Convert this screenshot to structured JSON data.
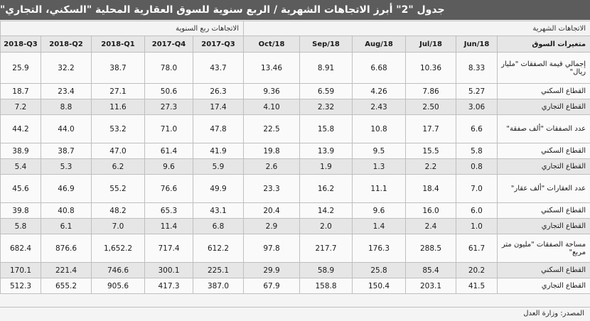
{
  "title": "جدول \"2\" أبرز الاتجاهات الشهرية / الربع سنوية للسوق العقارية المحلية \"السكني، التجاري\"",
  "group_headers": {
    "quarterly": "الاتجاهات ربع السنوية",
    "monthly": "الاتجاهات الشهرية"
  },
  "label_header": "متغيرات السوق",
  "columns": [
    "2018-Q3",
    "2018-Q2",
    "2018-Q1",
    "2017-Q4",
    "2017-Q3",
    "Oct/18",
    "Sep/18",
    "Aug/18",
    "Jul/18",
    "Jun/18"
  ],
  "rows": [
    {
      "label": "إجمالي قيمة الصفقات \"مليار ريال\"",
      "values": [
        "25.9",
        "32.2",
        "38.7",
        "78.0",
        "43.7",
        "13.46",
        "8.91",
        "6.68",
        "10.36",
        "8.33"
      ]
    },
    {
      "label": "القطاع السكني",
      "values": [
        "18.7",
        "23.4",
        "27.1",
        "50.6",
        "26.3",
        "9.36",
        "6.59",
        "4.26",
        "7.86",
        "5.27"
      ]
    },
    {
      "label": "القطاع التجاري",
      "values": [
        "7.2",
        "8.8",
        "11.6",
        "27.3",
        "17.4",
        "4.10",
        "2.32",
        "2.43",
        "2.50",
        "3.06"
      ]
    },
    {
      "label": "عدد الصفقات \"ألف صفقة\"",
      "values": [
        "44.2",
        "44.0",
        "53.2",
        "71.0",
        "47.8",
        "22.5",
        "15.8",
        "10.8",
        "17.7",
        "6.6"
      ]
    },
    {
      "label": "القطاع السكني",
      "values": [
        "38.9",
        "38.7",
        "47.0",
        "61.4",
        "41.9",
        "19.8",
        "13.9",
        "9.5",
        "15.5",
        "5.8"
      ]
    },
    {
      "label": "القطاع التجاري",
      "values": [
        "5.4",
        "5.3",
        "6.2",
        "9.6",
        "5.9",
        "2.6",
        "1.9",
        "1.3",
        "2.2",
        "0.8"
      ]
    },
    {
      "label": "عدد العقارات \"ألف عقار\"",
      "values": [
        "45.6",
        "46.9",
        "55.2",
        "76.6",
        "49.9",
        "23.3",
        "16.2",
        "11.1",
        "18.4",
        "7.0"
      ]
    },
    {
      "label": "القطاع السكني",
      "values": [
        "39.8",
        "40.8",
        "48.2",
        "65.3",
        "43.1",
        "20.4",
        "14.2",
        "9.6",
        "16.0",
        "6.0"
      ]
    },
    {
      "label": "القطاع التجاري",
      "values": [
        "5.8",
        "6.1",
        "7.0",
        "11.4",
        "6.8",
        "2.9",
        "2.0",
        "1.4",
        "2.4",
        "1.0"
      ]
    },
    {
      "label": "مساحة الصفقات \"مليون متر مربع\"",
      "values": [
        "682.4",
        "876.6",
        "1,652.2",
        "717.4",
        "612.2",
        "97.8",
        "217.7",
        "176.3",
        "288.5",
        "61.7"
      ]
    },
    {
      "label": "القطاع السكني",
      "values": [
        "170.1",
        "221.4",
        "746.6",
        "300.1",
        "225.1",
        "29.9",
        "58.9",
        "25.8",
        "85.4",
        "20.2"
      ]
    },
    {
      "label": "القطاع التجاري",
      "values": [
        "512.3",
        "655.2",
        "905.6",
        "417.3",
        "387.0",
        "67.9",
        "158.8",
        "150.4",
        "203.1",
        "41.5"
      ]
    }
  ],
  "source": "المصدر: وزارة العدل"
}
